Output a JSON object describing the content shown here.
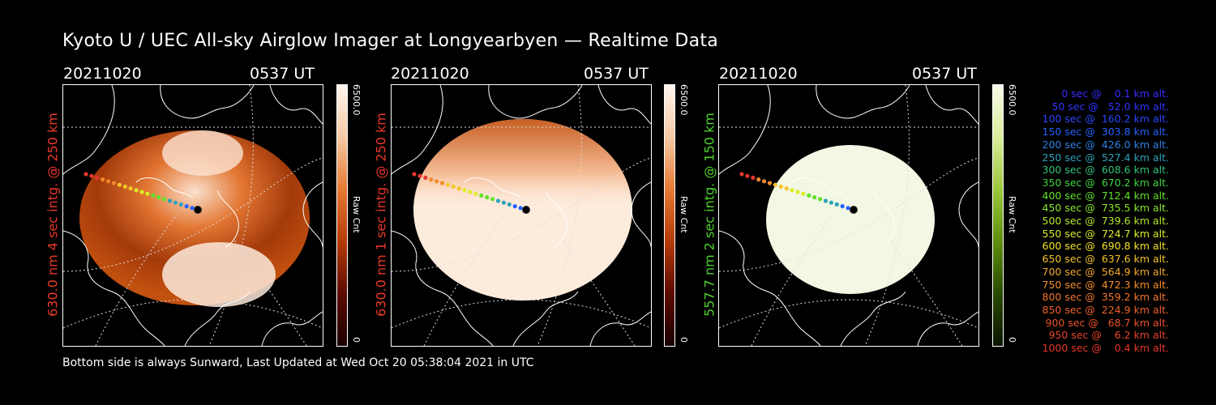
{
  "title": "Kyoto U / UEC All-sky Airglow Imager at Longyearbyen — Realtime Data",
  "footer": "Bottom side is always Sunward, Last Updated at Wed Oct 20 05:38:04 2021 in UTC",
  "panels": [
    {
      "date": "20211020",
      "time": "0537 UT",
      "ylabel": "630.0 nm 4 sec intg. @ 250 km",
      "ylabel_color": "#e8372a",
      "cbar_max": "6500.0",
      "cbar_min": "0",
      "cbar_unit": "Raw Cnt",
      "cmap": [
        "#fff5ee",
        "#f7c9a4",
        "#e67a33",
        "#b53a08",
        "#5c0a00",
        "#1a0000"
      ],
      "dome_fill": "#b9450c",
      "dome_light": "#fdebdc",
      "track_opacity": 1.0
    },
    {
      "date": "20211020",
      "time": "0537 UT",
      "ylabel": "630.0 nm 1 sec intg. @ 250 km",
      "ylabel_color": "#e8372a",
      "cbar_max": "6500.0",
      "cbar_min": "0",
      "cbar_unit": "Raw Cnt",
      "cmap": [
        "#fff5ee",
        "#f7c9a4",
        "#e67a33",
        "#b53a08",
        "#5c0a00",
        "#1a0000"
      ],
      "dome_fill": "#fdebdc",
      "dome_light": "#c65312",
      "track_opacity": 1.0
    },
    {
      "date": "20211020",
      "time": "0537 UT",
      "ylabel": "557.7 nm 2 sec intg. @ 150 km",
      "ylabel_color": "#4fd12e",
      "cbar_max": "6500.0",
      "cbar_min": "0",
      "cbar_unit": "Raw Cnt",
      "cmap": [
        "#f7fbe9",
        "#d9ec9a",
        "#9cc73c",
        "#5d8f0e",
        "#2a4a00",
        "#0a1400"
      ],
      "dome_fill": "#f3f8e4",
      "dome_light": "#f3f8e4",
      "track_opacity": 1.0
    }
  ],
  "legend": [
    {
      "text": "   0 sec @    0.1 km alt.",
      "color": "#3a2cff"
    },
    {
      "text": "  50 sec @   52.0 km alt.",
      "color": "#2f34ff"
    },
    {
      "text": " 100 sec @  160.2 km alt.",
      "color": "#2a46ff"
    },
    {
      "text": " 150 sec @  303.8 km alt.",
      "color": "#2562ff"
    },
    {
      "text": " 200 sec @  426.0 km alt.",
      "color": "#2c82e6"
    },
    {
      "text": " 250 sec @  527.4 km alt.",
      "color": "#2ea3b8"
    },
    {
      "text": " 300 sec @  608.6 km alt.",
      "color": "#33c27a"
    },
    {
      "text": " 350 sec @  670.2 km alt.",
      "color": "#3fd640"
    },
    {
      "text": " 400 sec @  712.4 km alt.",
      "color": "#62e22a"
    },
    {
      "text": " 450 sec @  735.5 km alt.",
      "color": "#8ae62a"
    },
    {
      "text": " 500 sec @  739.6 km alt.",
      "color": "#b4ea2a"
    },
    {
      "text": " 550 sec @  724.7 km alt.",
      "color": "#dcec2a"
    },
    {
      "text": " 600 sec @  690.8 km alt.",
      "color": "#f2e12a"
    },
    {
      "text": " 650 sec @  637.6 km alt.",
      "color": "#f5c42a"
    },
    {
      "text": " 700 sec @  564.9 km alt.",
      "color": "#f5a82a"
    },
    {
      "text": " 750 sec @  472.3 km alt.",
      "color": "#f58e2a"
    },
    {
      "text": " 800 sec @  359.2 km alt.",
      "color": "#f2762a"
    },
    {
      "text": " 850 sec @  224.9 km alt.",
      "color": "#ef622a"
    },
    {
      "text": " 900 sec @   68.7 km alt.",
      "color": "#ec522a"
    },
    {
      "text": " 950 sec @    6.2 km alt.",
      "color": "#e9432a"
    },
    {
      "text": "1000 sec @    0.4 km alt.",
      "color": "#e6372a"
    }
  ]
}
